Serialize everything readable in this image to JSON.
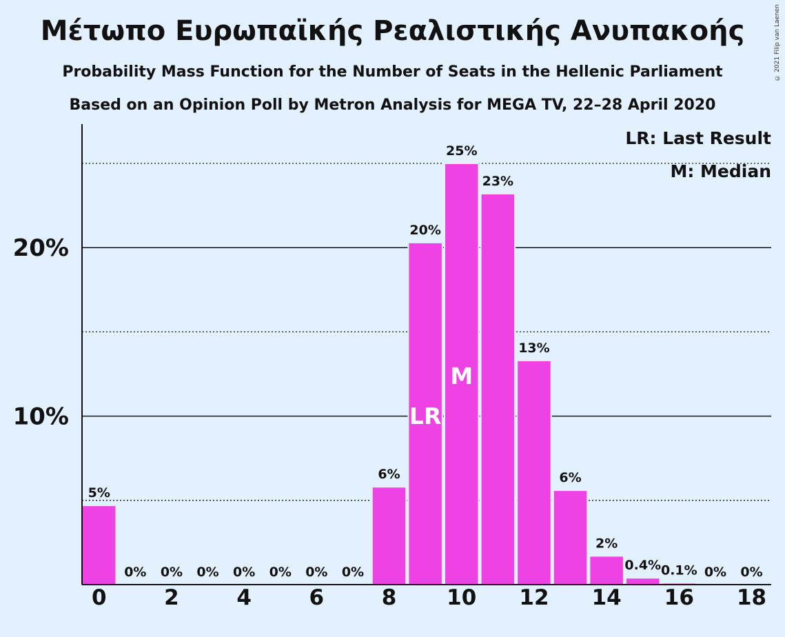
{
  "title": "Μέτωπο Ευρωπαϊκής Ρεαλιστικής Ανυπακοής",
  "subtitle1": "Probability Mass Function for the Number of Seats in the Hellenic Parliament",
  "subtitle2": "Based on an Opinion Poll by Metron Analysis for MEGA TV, 22–28 April 2020",
  "copyright": "© 2021 Filip van Laenen",
  "legend": {
    "last_result": "LR: Last Result",
    "median": "M: Median"
  },
  "colors": {
    "bar": "#ee42e4",
    "background": "#e3f1fe",
    "axis": "#111111"
  },
  "chart_data": {
    "type": "bar",
    "categories": [
      0,
      1,
      2,
      3,
      4,
      5,
      6,
      7,
      8,
      9,
      10,
      11,
      12,
      13,
      14,
      15,
      16,
      17,
      18
    ],
    "values": [
      4.7,
      0,
      0,
      0,
      0,
      0,
      0,
      0,
      5.8,
      20.3,
      25.0,
      23.2,
      13.3,
      5.6,
      1.7,
      0.4,
      0.1,
      0,
      0
    ],
    "data_labels": [
      "5%",
      "0%",
      "0%",
      "0%",
      "0%",
      "0%",
      "0%",
      "0%",
      "6%",
      "20%",
      "25%",
      "23%",
      "13%",
      "6%",
      "2%",
      "0.4%",
      "0.1%",
      "0%",
      "0%"
    ],
    "x_ticks": [
      "0",
      "2",
      "4",
      "6",
      "8",
      "10",
      "12",
      "14",
      "16",
      "18"
    ],
    "y_ticks": [
      {
        "value": 10,
        "label": "10%"
      },
      {
        "value": 20,
        "label": "20%"
      }
    ],
    "y_dotted_lines": [
      5,
      15,
      25
    ],
    "ylim": [
      0,
      27.5
    ],
    "last_result_seat": 9,
    "median_seat": 10,
    "bar_markers": [
      {
        "seat": 9,
        "label": "LR"
      },
      {
        "seat": 10,
        "label": "M"
      }
    ]
  }
}
